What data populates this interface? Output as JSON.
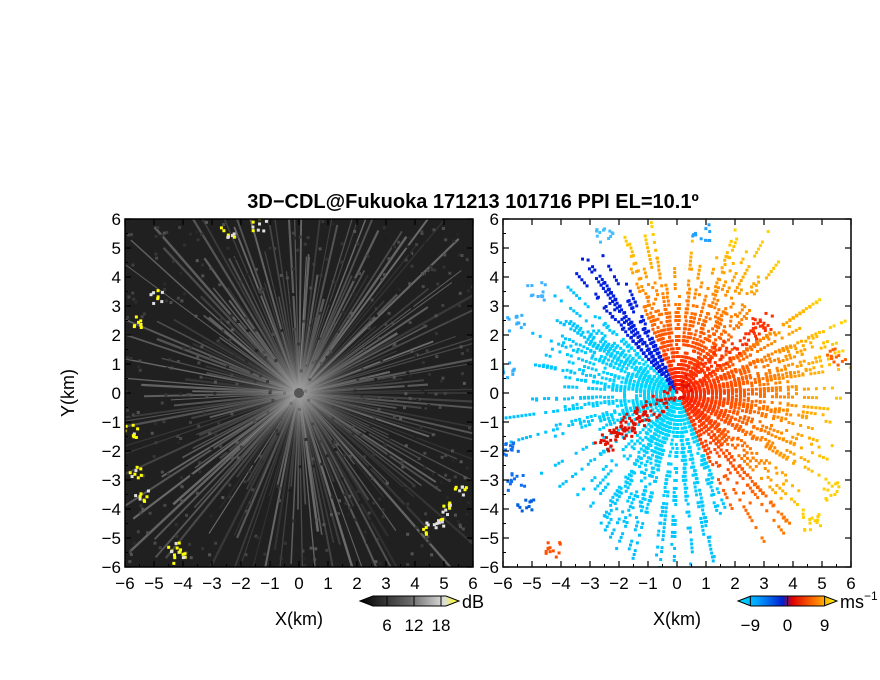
{
  "title": "3D−CDL@Fukuoka 171213 101716 PPI EL=10.1º",
  "chart_data": [
    {
      "type": "heatmap",
      "panel": "reflectivity",
      "xlabel": "X(km)",
      "ylabel": "Y(km)",
      "xlim": [
        -6,
        6
      ],
      "ylim": [
        -6,
        6
      ],
      "xticks": [
        "−6",
        "−5",
        "−4",
        "−3",
        "−2",
        "−1",
        "0",
        "1",
        "2",
        "3",
        "4",
        "5",
        "6"
      ],
      "yticks": [
        "−6",
        "−5",
        "−4",
        "−3",
        "−2",
        "−1",
        "0",
        "1",
        "2",
        "3",
        "4",
        "5",
        "6"
      ],
      "colorbar": {
        "unit": "dB",
        "ticks": [
          "6",
          "12",
          "18"
        ],
        "tick_values": [
          6,
          12,
          18
        ],
        "range": [
          0,
          22
        ]
      },
      "colors": {
        "background": "#202020",
        "rays": "#c8c8c8",
        "high_echo": "#ffff00"
      }
    },
    {
      "type": "heatmap",
      "panel": "doppler-velocity",
      "xlabel": "X(km)",
      "ylabel": "",
      "xlim": [
        -6,
        6
      ],
      "ylim": [
        -6,
        6
      ],
      "xticks": [
        "−6",
        "−5",
        "−4",
        "−3",
        "−2",
        "−1",
        "0",
        "1",
        "2",
        "3",
        "4",
        "5",
        "6"
      ],
      "yticks": [
        "−6",
        "−5",
        "−4",
        "−3",
        "−2",
        "−1",
        "0",
        "1",
        "2",
        "3",
        "4",
        "5",
        "6"
      ],
      "colorbar": {
        "unit": "ms",
        "unit_exponent": "−1",
        "ticks": [
          "−9",
          "0",
          "9"
        ],
        "tick_values": [
          -9,
          0,
          9
        ],
        "range": [
          -12,
          12
        ]
      },
      "colors": {
        "negative": "#00b0ff",
        "negative_far": "#0050e0",
        "positive": "#ff2000",
        "positive_far": "#ffd000"
      }
    }
  ]
}
